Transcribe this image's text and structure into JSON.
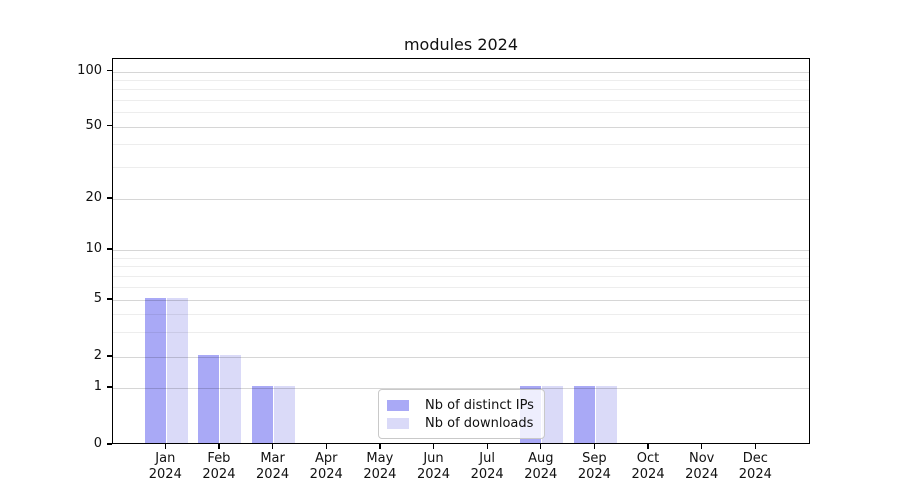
{
  "title": "modules 2024",
  "colors": {
    "distinct_ips": "#a9a9f6",
    "downloads": "#dadaf8",
    "axis": "#000000",
    "text": "#111111",
    "grid_major": "rgba(0,0,0,0.16)",
    "grid_minor": "rgba(0,0,0,0.07)",
    "legend_border": "#c9c9c9",
    "legend_bg": "rgba(255,255,255,0.8)"
  },
  "legend": {
    "items": [
      {
        "label": "Nb of distinct IPs",
        "series": "distinct_ips"
      },
      {
        "label": "Nb of downloads",
        "series": "downloads"
      }
    ]
  },
  "chart_data": {
    "type": "bar",
    "title": "modules 2024",
    "categories": [
      "Jan 2024",
      "Feb 2024",
      "Mar 2024",
      "Apr 2024",
      "May 2024",
      "Jun 2024",
      "Jul 2024",
      "Aug 2024",
      "Sep 2024",
      "Oct 2024",
      "Nov 2024",
      "Dec 2024"
    ],
    "x_tick_labels": [
      {
        "month": "Jan",
        "year": "2024"
      },
      {
        "month": "Feb",
        "year": "2024"
      },
      {
        "month": "Mar",
        "year": "2024"
      },
      {
        "month": "Apr",
        "year": "2024"
      },
      {
        "month": "May",
        "year": "2024"
      },
      {
        "month": "Jun",
        "year": "2024"
      },
      {
        "month": "Jul",
        "year": "2024"
      },
      {
        "month": "Aug",
        "year": "2024"
      },
      {
        "month": "Sep",
        "year": "2024"
      },
      {
        "month": "Oct",
        "year": "2024"
      },
      {
        "month": "Nov",
        "year": "2024"
      },
      {
        "month": "Dec",
        "year": "2024"
      }
    ],
    "series": [
      {
        "name": "Nb of distinct IPs",
        "color_key": "distinct_ips",
        "values": [
          5,
          2,
          1,
          0,
          0,
          0,
          0,
          1,
          1,
          0,
          0,
          0
        ]
      },
      {
        "name": "Nb of downloads",
        "color_key": "downloads",
        "values": [
          5,
          2,
          1,
          0,
          0,
          0,
          0,
          1,
          1,
          0,
          0,
          0
        ]
      }
    ],
    "xlabel": "",
    "ylabel": "",
    "y_axis": {
      "scale": "log above 1, linear 0-1",
      "ticks": [
        0,
        1,
        2,
        5,
        10,
        20,
        50,
        100
      ],
      "minor_gridlines": [
        3,
        4,
        6,
        7,
        8,
        9,
        30,
        40,
        60,
        70,
        80,
        90
      ],
      "range": [
        0,
        117
      ]
    },
    "grid": "horizontal major+minor",
    "legend_position": "inside bottom-center"
  }
}
